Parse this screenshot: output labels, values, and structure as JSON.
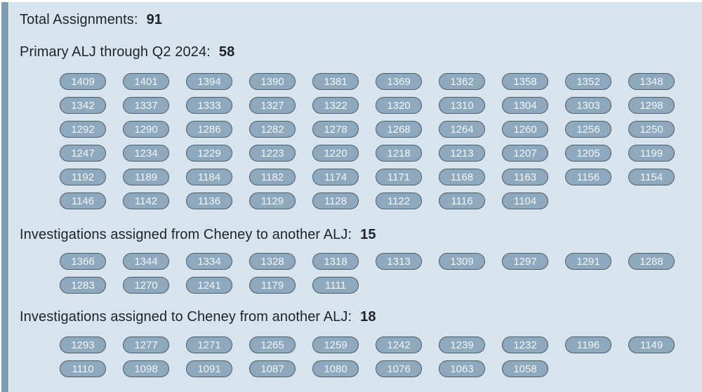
{
  "colors": {
    "panel_bg": "#d7e3ed",
    "scrollbar": "#7e9cb4",
    "pill_bg": "#8ea9bd",
    "pill_border": "#4e5d66",
    "pill_text": "#f2f6f9",
    "header_text": "#1f2328"
  },
  "sections": [
    {
      "label": "Total Assignments:",
      "count": "91",
      "pills": []
    },
    {
      "label": "Primary ALJ through Q2 2024:",
      "count": "58",
      "pills": [
        "1409",
        "1401",
        "1394",
        "1390",
        "1381",
        "1369",
        "1362",
        "1358",
        "1352",
        "1348",
        "1342",
        "1337",
        "1333",
        "1327",
        "1322",
        "1320",
        "1310",
        "1304",
        "1303",
        "1298",
        "1292",
        "1290",
        "1286",
        "1282",
        "1278",
        "1268",
        "1264",
        "1260",
        "1256",
        "1250",
        "1247",
        "1234",
        "1229",
        "1223",
        "1220",
        "1218",
        "1213",
        "1207",
        "1205",
        "1199",
        "1192",
        "1189",
        "1184",
        "1182",
        "1174",
        "1171",
        "1168",
        "1163",
        "1156",
        "1154",
        "1146",
        "1142",
        "1136",
        "1129",
        "1128",
        "1122",
        "1116",
        "1104"
      ]
    },
    {
      "label": "Investigations assigned from Cheney to another ALJ:",
      "count": "15",
      "pills": [
        "1366",
        "1344",
        "1334",
        "1328",
        "1318",
        "1313",
        "1309",
        "1297",
        "1291",
        "1288",
        "1283",
        "1270",
        "1241",
        "1179",
        "1111"
      ]
    },
    {
      "label": "Investigations assigned to Cheney from another ALJ:",
      "count": "18",
      "pills": [
        "1293",
        "1277",
        "1271",
        "1265",
        "1259",
        "1242",
        "1239",
        "1232",
        "1196",
        "1149",
        "1110",
        "1098",
        "1091",
        "1087",
        "1080",
        "1076",
        "1063",
        "1058"
      ]
    }
  ]
}
